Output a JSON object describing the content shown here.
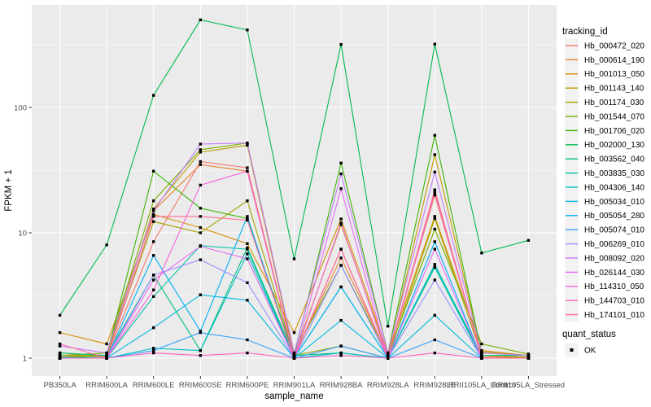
{
  "figure": {
    "background": "#ffffff",
    "panel_background": "#ebebeb",
    "grid_color": "#ffffff",
    "tick_label_color": "#4d4d4d",
    "axis_title_color": "#000000",
    "tick_mark_color": "#333333",
    "legend_key_background": "#f2f2f2",
    "marker_color": "#000000"
  },
  "chart_data": {
    "type": "line",
    "title": "",
    "xlabel": "sample_name",
    "ylabel": "FPKM + 1",
    "y_scale": "log10",
    "y_ticks": [
      1,
      10,
      100
    ],
    "y_tick_labels": [
      "1",
      "10",
      "100"
    ],
    "y_minor_ticks": [
      3.162,
      31.62,
      316.2
    ],
    "ylim_log": [
      -0.143,
      2.82
    ],
    "grid": true,
    "legend_position": "right",
    "categories": [
      "PB350LA",
      "RRIM600LA",
      "RRIM600LE",
      "RRIM600SE",
      "RRIM600PE",
      "RRIM901LA",
      "RRIM928BA",
      "RRIM928LA",
      "RRIM928LE",
      "RRII105LA_Control",
      "RRII105LA_Stressed"
    ],
    "color_legend_title": "tracking_id",
    "shape_legend_title": "quant_status",
    "shape_legend_label": "OK",
    "series": [
      {
        "name": "Hb_000472_020",
        "color": "#F8766D",
        "values": [
          1.05,
          1.02,
          8.5,
          37,
          33,
          1.02,
          7.4,
          1.02,
          22,
          1.02,
          1.0
        ]
      },
      {
        "name": "Hb_000614_190",
        "color": "#EA8331",
        "values": [
          1.1,
          1.05,
          15,
          35,
          31,
          1.05,
          6.3,
          1.05,
          20,
          1.05,
          1.0
        ]
      },
      {
        "name": "Hb_001013_050",
        "color": "#D89000",
        "values": [
          1.6,
          1.3,
          14,
          11,
          8.2,
          1.6,
          12.9,
          1.1,
          13.5,
          1.15,
          1.05
        ]
      },
      {
        "name": "Hb_001143_140",
        "color": "#C09B00",
        "values": [
          1.05,
          1.05,
          15.5,
          44,
          50,
          1.05,
          11.6,
          1.05,
          42,
          1.12,
          1.05
        ]
      },
      {
        "name": "Hb_001174_030",
        "color": "#A3A500",
        "values": [
          1.02,
          1.05,
          12.3,
          10,
          18,
          1.05,
          1.25,
          1.0,
          13,
          1.05,
          1.02
        ]
      },
      {
        "name": "Hb_001544_070",
        "color": "#7CAE00",
        "values": [
          1.05,
          1.1,
          18,
          46,
          52,
          1.1,
          5.5,
          1.05,
          10.7,
          1.3,
          1.08
        ]
      },
      {
        "name": "Hb_001706_020",
        "color": "#39B600",
        "values": [
          1.0,
          1.05,
          31,
          15.7,
          13,
          1.05,
          36,
          1.1,
          60,
          1.1,
          1.05
        ]
      },
      {
        "name": "Hb_002000_130",
        "color": "#00BB4E",
        "values": [
          2.2,
          8.0,
          125,
          500,
          415,
          6.2,
          318,
          1.8,
          320,
          6.9,
          8.7
        ]
      },
      {
        "name": "Hb_003562_040",
        "color": "#00BF7D",
        "values": [
          1.1,
          1.05,
          4.6,
          1.15,
          7.6,
          1.05,
          1.1,
          1.0,
          5.5,
          1.05,
          1.05
        ]
      },
      {
        "name": "Hb_003835_030",
        "color": "#00C1A3",
        "values": [
          1.0,
          1.0,
          3.1,
          7.9,
          7.4,
          1.0,
          3.7,
          1.0,
          5.3,
          1.0,
          1.0
        ]
      },
      {
        "name": "Hb_004306_140",
        "color": "#00BFC4",
        "values": [
          1.02,
          1.0,
          1.2,
          1.15,
          6.8,
          1.0,
          1.1,
          1.0,
          5.6,
          1.0,
          1.0
        ]
      },
      {
        "name": "Hb_005034_010",
        "color": "#00BAE0",
        "values": [
          1.0,
          1.0,
          1.75,
          3.2,
          2.9,
          1.0,
          2.0,
          1.0,
          2.2,
          1.0,
          1.0
        ]
      },
      {
        "name": "Hb_005054_280",
        "color": "#00B0F6",
        "values": [
          1.0,
          1.0,
          6.6,
          1.64,
          13.5,
          1.0,
          3.7,
          1.0,
          8.5,
          1.0,
          1.0
        ]
      },
      {
        "name": "Hb_005074_010",
        "color": "#35A2FF",
        "values": [
          1.0,
          1.0,
          1.15,
          1.6,
          1.4,
          1.0,
          1.25,
          1.0,
          1.4,
          1.0,
          1.0
        ]
      },
      {
        "name": "Hb_006269_010",
        "color": "#9590FF",
        "values": [
          1.0,
          1.0,
          4.6,
          6.1,
          4.0,
          1.0,
          5.5,
          1.0,
          4.2,
          1.0,
          1.0
        ]
      },
      {
        "name": "Hb_008092_020",
        "color": "#C77CFF",
        "values": [
          1.25,
          1.1,
          15,
          51,
          52,
          1.1,
          29.5,
          1.1,
          30.5,
          1.1,
          1.05
        ]
      },
      {
        "name": "Hb_026144_030",
        "color": "#E76BF3",
        "values": [
          1.0,
          1.0,
          4.2,
          7.8,
          6.2,
          1.0,
          22.5,
          1.0,
          7.4,
          1.0,
          1.0
        ]
      },
      {
        "name": "Hb_114310_050",
        "color": "#FA62DB",
        "values": [
          1.0,
          1.0,
          3.5,
          24,
          31,
          1.0,
          12,
          1.0,
          21,
          1.0,
          1.0
        ]
      },
      {
        "name": "Hb_144703_010",
        "color": "#FF62BC",
        "values": [
          1.0,
          1.0,
          1.1,
          1.05,
          1.1,
          1.0,
          1.05,
          1.0,
          1.1,
          1.0,
          1.0
        ]
      },
      {
        "name": "Hb_174101_010",
        "color": "#FF6A98",
        "values": [
          1.3,
          1.0,
          13.5,
          13.5,
          12.6,
          1.0,
          7.4,
          1.0,
          22,
          1.0,
          1.0
        ]
      }
    ]
  }
}
